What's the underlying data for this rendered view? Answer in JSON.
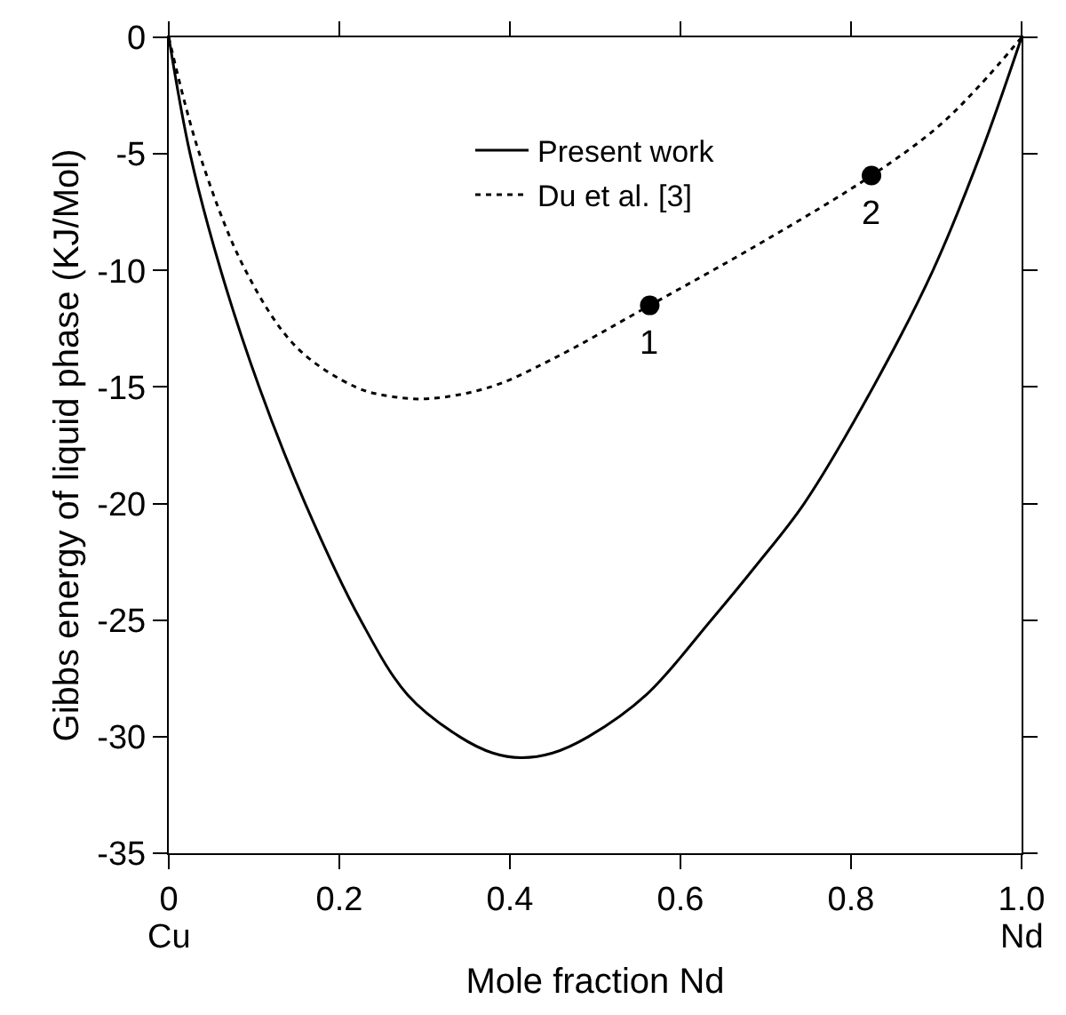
{
  "chart_data": {
    "type": "line",
    "xlabel": "Mole fraction Nd",
    "ylabel": "Gibbs energy of liquid phase (KJ/Mol)",
    "xlim": [
      0,
      1.0
    ],
    "ylim": [
      -35,
      0
    ],
    "xticks": [
      0,
      0.2,
      0.4,
      0.6,
      0.8,
      {
        "value": 1.0,
        "label": "1.0"
      }
    ],
    "yticks": [
      -35,
      -30,
      -25,
      -20,
      -15,
      -10,
      -5,
      0
    ],
    "legend": "top",
    "series": [
      {
        "name": "Present work",
        "color": "#000000",
        "line_style": "solid",
        "marker": "none",
        "x": [
          0,
          0.025,
          0.061,
          0.106,
          0.16,
          0.225,
          0.28,
          0.341,
          0.38,
          0.413,
          0.45,
          0.492,
          0.56,
          0.636,
          0.69,
          0.745,
          0.826,
          0.896,
          0.952,
          1.0
        ],
        "values": [
          0,
          -5,
          -10,
          -15,
          -20,
          -25,
          -28.2,
          -30,
          -30.7,
          -30.9,
          -30.7,
          -30,
          -28.2,
          -25,
          -22.6,
          -20,
          -15,
          -10,
          -5,
          0
        ]
      },
      {
        "name": "Du et al. [3]",
        "color": "#000000",
        "line_style": "dotted",
        "marker": "none",
        "x": [
          0,
          0.036,
          0.09,
          0.15,
          0.219,
          0.26,
          0.305,
          0.377,
          0.45,
          0.564,
          0.7,
          0.824,
          0.9,
          0.95,
          1.0
        ],
        "values": [
          0,
          -5,
          -10,
          -13.3,
          -15,
          -15.4,
          -15.5,
          -15,
          -13.8,
          -11.5,
          -8.7,
          -5.93,
          -3.9,
          -2.1,
          0
        ]
      },
      {
        "type": "scatter",
        "color": "#000000",
        "marker": "circle",
        "x": [
          0.564,
          0.824
        ],
        "values": [
          -11.5,
          -5.93
        ]
      }
    ],
    "annotations": [
      {
        "text": "1",
        "x": 0.564,
        "y": -11.5
      },
      {
        "text": "2",
        "x": 0.824,
        "y": -5.93
      },
      "Cu",
      "Nd"
    ]
  }
}
